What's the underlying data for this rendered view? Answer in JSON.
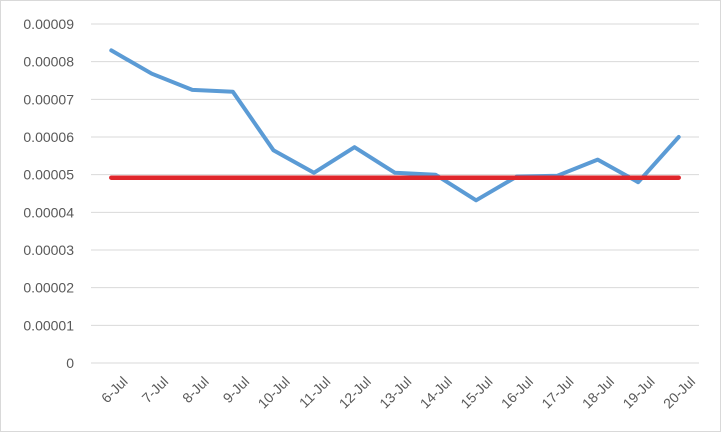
{
  "chart_data": {
    "type": "line",
    "title": "",
    "xlabel": "",
    "ylabel": "",
    "categories": [
      "6-Jul",
      "7-Jul",
      "8-Jul",
      "9-Jul",
      "10-Jul",
      "11-Jul",
      "12-Jul",
      "13-Jul",
      "14-Jul",
      "15-Jul",
      "16-Jul",
      "17-Jul",
      "18-Jul",
      "19-Jul",
      "20-Jul"
    ],
    "ylim": [
      0,
      9e-05
    ],
    "yticks": [
      "0",
      "0.00001",
      "0.00002",
      "0.00003",
      "0.00004",
      "0.00005",
      "0.00006",
      "0.00007",
      "0.00008",
      "0.00009"
    ],
    "grid": true,
    "legend": "none",
    "series": [
      {
        "color": "#5b9bd5",
        "values": [
          8.3e-05,
          7.68e-05,
          7.25e-05,
          7.2e-05,
          5.65e-05,
          5.05e-05,
          5.73e-05,
          5.05e-05,
          5e-05,
          4.32e-05,
          4.95e-05,
          4.97e-05,
          5.4e-05,
          4.8e-05,
          6e-05
        ]
      },
      {
        "color": "#e0262b",
        "values": [
          4.92e-05,
          4.92e-05,
          4.92e-05,
          4.92e-05,
          4.92e-05,
          4.92e-05,
          4.92e-05,
          4.92e-05,
          4.92e-05,
          4.92e-05,
          4.92e-05,
          4.92e-05,
          4.92e-05,
          4.92e-05,
          4.92e-05
        ]
      }
    ]
  }
}
